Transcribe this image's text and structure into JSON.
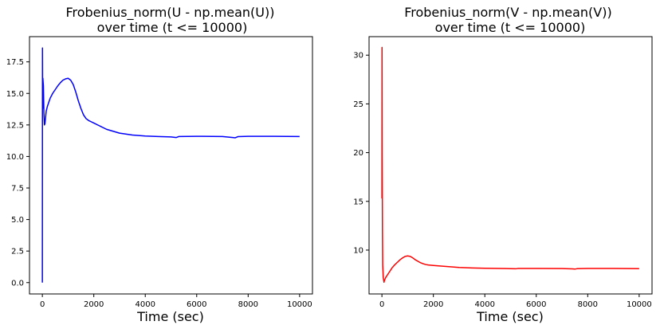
{
  "chart_data": [
    {
      "type": "line",
      "title": "Frobenius_norm(U - np.mean(U))\nover time (t <= 10000)",
      "xlabel": "Time (sec)",
      "ylabel": "",
      "xlim": [
        -500,
        10500
      ],
      "ylim": [
        -0.9,
        19.5
      ],
      "xticks": [
        0,
        2000,
        4000,
        6000,
        8000,
        10000
      ],
      "xtick_labels": [
        "0",
        "2000",
        "4000",
        "6000",
        "8000",
        "10000"
      ],
      "yticks": [
        0.0,
        2.5,
        5.0,
        7.5,
        10.0,
        12.5,
        15.0,
        17.5
      ],
      "ytick_labels": [
        "0.0",
        "2.5",
        "5.0",
        "7.5",
        "10.0",
        "12.5",
        "15.0",
        "17.5"
      ],
      "grid": false,
      "series": [
        {
          "color": "#0000ff",
          "x": [
            0,
            5,
            8,
            12,
            20,
            40,
            60,
            80,
            100,
            150,
            200,
            300,
            400,
            500,
            600,
            700,
            800,
            900,
            1000,
            1100,
            1200,
            1300,
            1400,
            1500,
            1600,
            1700,
            1800,
            1900,
            2000,
            2200,
            2500,
            3000,
            3500,
            4000,
            4500,
            5000,
            5200,
            5300,
            6000,
            7000,
            7400,
            7500,
            7600,
            8000,
            9000,
            10000
          ],
          "y": [
            0.0,
            18.6,
            17.0,
            13.8,
            16.2,
            15.6,
            13.5,
            12.5,
            12.6,
            13.6,
            14.0,
            14.6,
            15.0,
            15.3,
            15.6,
            15.85,
            16.05,
            16.15,
            16.2,
            16.05,
            15.7,
            15.1,
            14.4,
            13.8,
            13.3,
            13.0,
            12.85,
            12.75,
            12.65,
            12.45,
            12.15,
            11.85,
            11.7,
            11.62,
            11.58,
            11.55,
            11.5,
            11.58,
            11.6,
            11.58,
            11.5,
            11.48,
            11.57,
            11.6,
            11.6,
            11.58
          ]
        }
      ]
    },
    {
      "type": "line",
      "title": "Frobenius_norm(V - np.mean(V))\nover time (t <= 10000)",
      "xlabel": "Time (sec)",
      "ylabel": "",
      "xlim": [
        -500,
        10500
      ],
      "ylim": [
        5.5,
        31.9
      ],
      "xticks": [
        0,
        2000,
        4000,
        6000,
        8000,
        10000
      ],
      "xtick_labels": [
        "0",
        "2000",
        "4000",
        "6000",
        "8000",
        "10000"
      ],
      "yticks": [
        10,
        15,
        20,
        25,
        30
      ],
      "ytick_labels": [
        "10",
        "15",
        "20",
        "25",
        "30"
      ],
      "grid": false,
      "series": [
        {
          "color": "#ff0000",
          "x": [
            0,
            4,
            6,
            10,
            20,
            30,
            50,
            80,
            100,
            150,
            200,
            300,
            400,
            500,
            600,
            700,
            800,
            900,
            1000,
            1100,
            1200,
            1300,
            1400,
            1500,
            1600,
            1700,
            1800,
            2000,
            2500,
            3000,
            3500,
            4000,
            5000,
            5200,
            5300,
            6000,
            7000,
            7400,
            7500,
            7600,
            8000,
            9000,
            10000
          ],
          "y": [
            15.3,
            30.8,
            28.0,
            20.0,
            12.0,
            8.5,
            7.2,
            6.7,
            6.9,
            7.2,
            7.4,
            7.8,
            8.2,
            8.5,
            8.75,
            9.0,
            9.2,
            9.35,
            9.4,
            9.35,
            9.2,
            9.0,
            8.85,
            8.7,
            8.6,
            8.52,
            8.47,
            8.42,
            8.32,
            8.22,
            8.17,
            8.14,
            8.1,
            8.08,
            8.12,
            8.12,
            8.11,
            8.07,
            8.05,
            8.1,
            8.12,
            8.12,
            8.1
          ]
        }
      ]
    }
  ]
}
